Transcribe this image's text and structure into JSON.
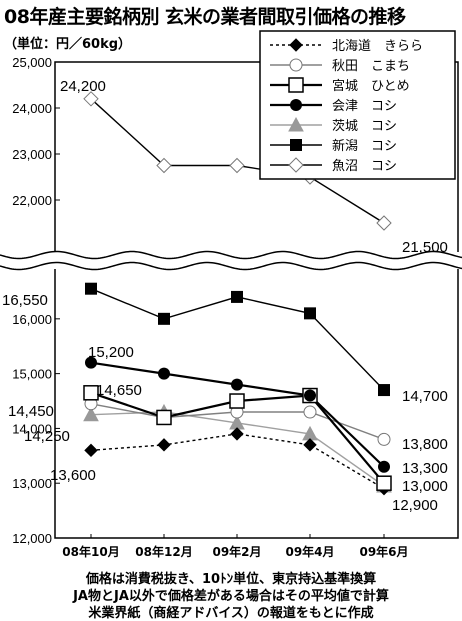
{
  "chart_data": {
    "type": "line",
    "title": "08年産主要銘柄別 玄米の業者間取引価格の推移",
    "unit_label": "（単位：円／60kg）",
    "categories": [
      "08年10月",
      "08年12月",
      "09年2月",
      "09年4月",
      "09年6月"
    ],
    "y_ticks_upper": [
      "25,000",
      "24,000",
      "23,000",
      "22,000"
    ],
    "y_ticks_lower": [
      "16,000",
      "15,000",
      "14,000",
      "13,000",
      "12,000"
    ],
    "ylim_upper": [
      21000,
      25000
    ],
    "ylim_lower": [
      12000,
      16800
    ],
    "axis_break": true,
    "legend_position": "top-right",
    "series": [
      {
        "name": "北海道　きらら",
        "values": [
          13600,
          13700,
          13900,
          13700,
          12900
        ],
        "marker": "diamond-filled",
        "line": "dashed",
        "color": "#000000"
      },
      {
        "name": "秋田　こまち",
        "values": [
          14450,
          14200,
          14300,
          14300,
          13800
        ],
        "marker": "circle-open",
        "line": "solid",
        "color": "#808080"
      },
      {
        "name": "宮城　ひとめ",
        "values": [
          14650,
          14200,
          14500,
          14600,
          13000
        ],
        "marker": "square-open",
        "line": "solid",
        "color": "#000000"
      },
      {
        "name": "会津　コシ",
        "values": [
          15200,
          15000,
          14800,
          14600,
          13300
        ],
        "marker": "circle-filled",
        "line": "solid",
        "color": "#000000"
      },
      {
        "name": "茨城　コシ",
        "values": [
          14250,
          14300,
          14100,
          13900,
          12950
        ],
        "marker": "triangle-filled",
        "line": "solid",
        "color": "#a0a0a0"
      },
      {
        "name": "新潟　コシ",
        "values": [
          16550,
          16000,
          16400,
          16100,
          14700
        ],
        "marker": "square-filled",
        "line": "solid",
        "color": "#000000"
      },
      {
        "name": "魚沼　コシ",
        "values": [
          24200,
          22750,
          22750,
          22500,
          21500
        ],
        "marker": "diamond-open",
        "line": "solid",
        "color": "#000000"
      }
    ],
    "data_labels": [
      "24,200",
      "21,500",
      "16,550",
      "15,200",
      "14,650",
      "14,450",
      "14,250",
      "13,600",
      "14,700",
      "13,800",
      "13,300",
      "13,000",
      "12,900"
    ]
  },
  "footnotes": [
    "価格は消費税抜き、10ﾄﾝ単位、東京持込基準換算",
    "JA物とJA以外で価格差がある場合はその平均値で計算",
    "米業界紙（商経アドバイス）の報道をもとに作成"
  ]
}
